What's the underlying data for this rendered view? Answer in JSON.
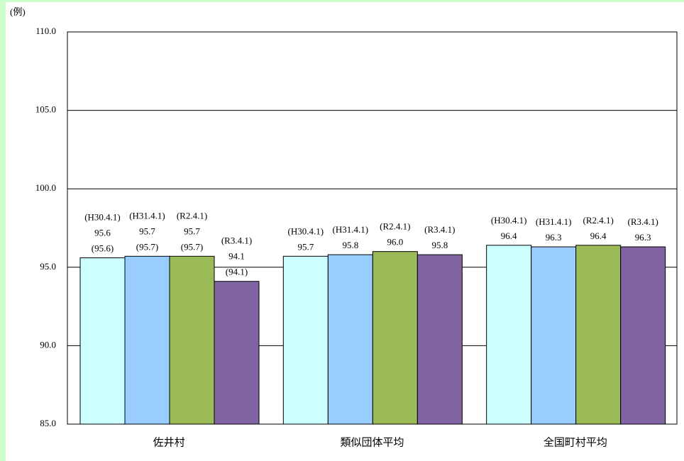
{
  "chart_data": {
    "type": "bar",
    "unit_label": "(例)",
    "categories": [
      "佐井村",
      "類似団体平均",
      "全国町村平均"
    ],
    "series": [
      {
        "name": "(H30.4.1)",
        "color": "#ccffff",
        "values": [
          95.6,
          95.7,
          96.4
        ],
        "value_labels": [
          "95.6",
          "95.7",
          "96.4"
        ],
        "paren_values": [
          95.6,
          null,
          null
        ],
        "paren_value_labels": [
          "(95.6)",
          null,
          null
        ]
      },
      {
        "name": "(H31.4.1)",
        "color": "#99ccff",
        "values": [
          95.7,
          95.8,
          96.3
        ],
        "value_labels": [
          "95.7",
          "95.8",
          "96.3"
        ],
        "paren_values": [
          95.7,
          null,
          null
        ],
        "paren_value_labels": [
          "(95.7)",
          null,
          null
        ]
      },
      {
        "name": "(R2.4.1)",
        "color": "#9bbb59",
        "values": [
          95.7,
          96.0,
          96.4
        ],
        "value_labels": [
          "95.7",
          "96.0",
          "96.4"
        ],
        "paren_values": [
          95.7,
          null,
          null
        ],
        "paren_value_labels": [
          "(95.7)",
          null,
          null
        ]
      },
      {
        "name": "(R3.4.1)",
        "color": "#8064a2",
        "values": [
          94.1,
          95.8,
          96.3
        ],
        "value_labels": [
          "94.1",
          "95.8",
          "96.3"
        ],
        "paren_values": [
          94.1,
          null,
          null
        ],
        "paren_value_labels": [
          "(94.1)",
          null,
          null
        ]
      }
    ],
    "ylim": [
      85,
      110
    ],
    "yticks": [
      {
        "value": 85,
        "label": "85.0"
      },
      {
        "value": 90,
        "label": "90.0"
      },
      {
        "value": 95,
        "label": "95.0"
      },
      {
        "value": 100,
        "label": "100.0"
      },
      {
        "value": 105,
        "label": "105.0"
      },
      {
        "value": 110,
        "label": "110.0"
      }
    ],
    "grid": true
  }
}
